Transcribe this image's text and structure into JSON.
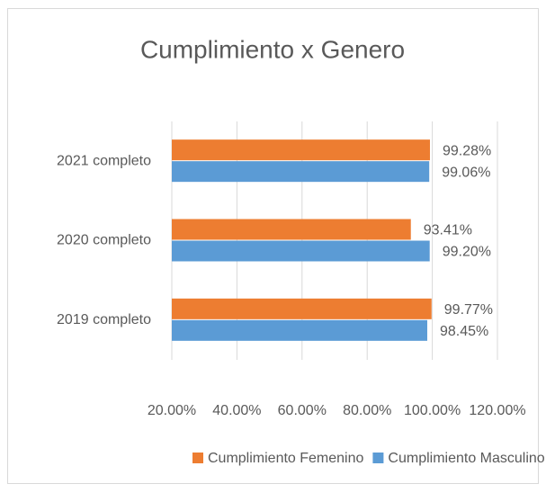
{
  "chart_data": {
    "type": "hbar",
    "title": "Cumplimiento x Genero",
    "categories": [
      "2021 completo",
      "2020 completo",
      "2019 completo"
    ],
    "series": [
      {
        "name": "Cumplimiento Femenino",
        "color": "#ed7d31",
        "values": [
          99.28,
          93.41,
          99.77
        ],
        "value_labels": [
          "99.28%",
          "93.41%",
          "99.77%"
        ]
      },
      {
        "name": "Cumplimiento Masculino",
        "color": "#5b9bd5",
        "values": [
          99.06,
          99.2,
          98.45
        ],
        "value_labels": [
          "99.06%",
          "99.20%",
          "98.45%"
        ]
      }
    ],
    "xlim": [
      20,
      120
    ],
    "xticks": [
      {
        "value": 20,
        "label": "20.00%"
      },
      {
        "value": 40,
        "label": "40.00%"
      },
      {
        "value": 60,
        "label": "60.00%"
      },
      {
        "value": 80,
        "label": "80.00%"
      },
      {
        "value": 100,
        "label": "100.00%"
      },
      {
        "value": 120,
        "label": "120.00%"
      }
    ],
    "grid": true,
    "legend": "bottom"
  }
}
